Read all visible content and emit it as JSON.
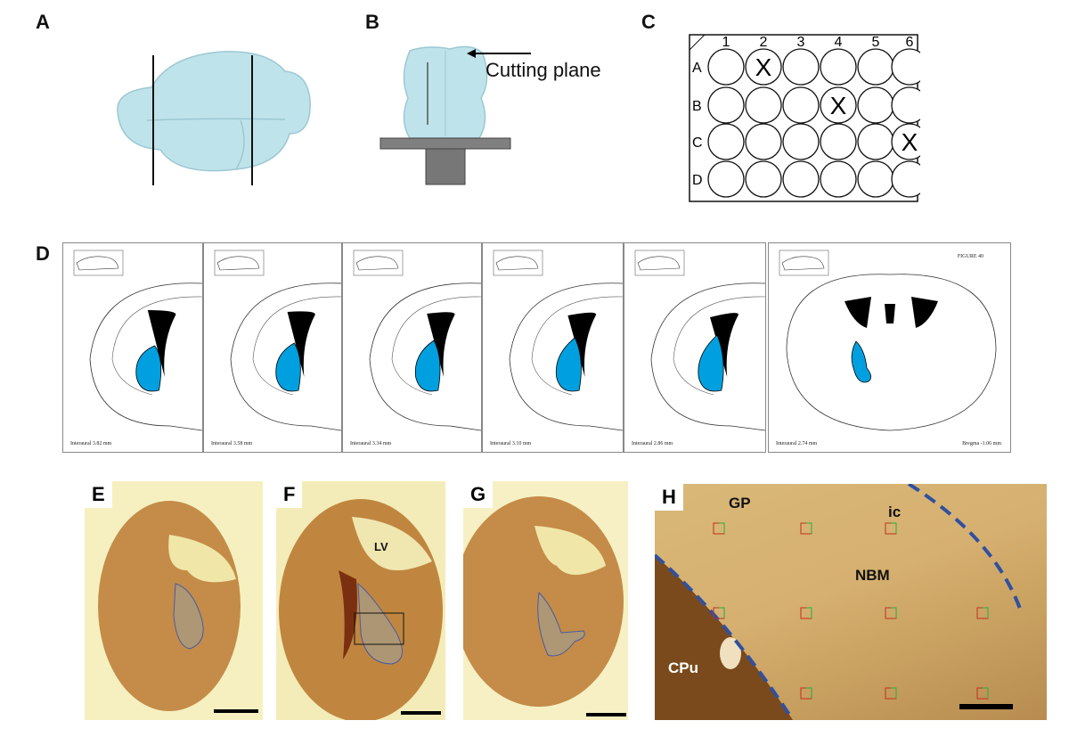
{
  "panels": {
    "a": "A",
    "b": "B",
    "c": "C",
    "d": "D",
    "e": "E",
    "f": "F",
    "g": "G",
    "h": "H"
  },
  "panel_b": {
    "arrow_label": "Cutting plane"
  },
  "panel_c": {
    "columns": [
      "1",
      "2",
      "3",
      "4",
      "5",
      "6"
    ],
    "rows": [
      "A",
      "B",
      "C",
      "D"
    ],
    "marked_wells": [
      "A2",
      "B4",
      "C6"
    ],
    "mark": "X"
  },
  "panel_d": {
    "sections": [
      "Interaural 3.82 mm",
      "Interaural 3.58 mm",
      "Interaural 3.34 mm",
      "Interaural 3.10 mm",
      "Interaural 2.86 mm",
      "Interaural 2.74 mm"
    ],
    "figure_title": "FIGURE 40",
    "bregma": "Bregma -1.06 mm",
    "highlight_color": "#00a0e0"
  },
  "panel_f": {
    "region": "LV"
  },
  "panel_h": {
    "labels": {
      "gp": "GP",
      "ic": "ic",
      "nbm": "NBM",
      "cpu": "CPu"
    },
    "boundary_color": "#3050a0"
  }
}
